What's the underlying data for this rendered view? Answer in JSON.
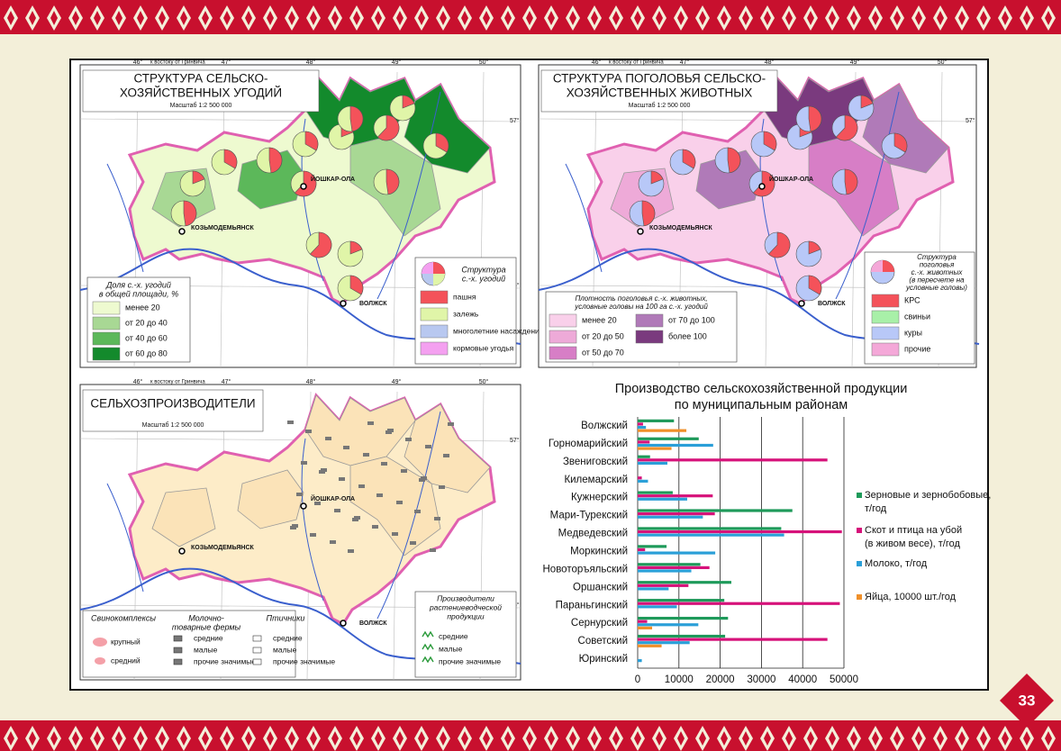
{
  "page_number": "33",
  "graticule": {
    "lon": [
      "46°",
      "47°",
      "48°",
      "49°",
      "50°"
    ],
    "note": "к востоку от Гринвича",
    "lat": [
      "57°",
      "56°"
    ]
  },
  "cities": [
    "ЙОШКАР-ОЛА",
    "КОЗЬМОДЕМЬЯНСК",
    "ВОЛЖСК"
  ],
  "maps": [
    {
      "title": [
        "СТРУКТУРА СЕЛЬСКО-",
        "ХОЗЯЙСТВЕННЫХ УГОДИЙ"
      ],
      "scale": "Масштаб 1:2 500 000",
      "legend1": {
        "title": [
          "Доля с.-х. угодий",
          "в общей площади, %"
        ],
        "items": [
          "менее 20",
          "от 20 до 40",
          "от 40 до 60",
          "от 60 до 80"
        ]
      },
      "legend2": {
        "title": [
          "Структура",
          "с.-х. угодий"
        ],
        "items": [
          "пашня",
          "залежь",
          "многолетние насаждения",
          "кормовые угодья"
        ]
      }
    },
    {
      "title": [
        "СТРУКТУРА ПОГОЛОВЬЯ СЕЛЬСКО-",
        "ХОЗЯЙСТВЕННЫХ ЖИВОТНЫХ"
      ],
      "scale": "Масштаб 1:2 500 000",
      "legend1": {
        "title": [
          "Плотность поголовья с.-х. животных,",
          "условные головы на 100 га с.-х. угодий"
        ],
        "items": [
          "менее 20",
          "от 20 до 50",
          "от 50 до 70",
          "от 70 до 100",
          "более 100"
        ]
      },
      "legend2": {
        "title": [
          "Структура",
          "поголовья",
          "с.-х. животных",
          "(в пересчете на",
          "условные головы)"
        ],
        "items": [
          "КРС",
          "свиньи",
          "куры",
          "прочие"
        ]
      }
    },
    {
      "title": [
        "СЕЛЬХОЗПРОИЗВОДИТЕЛИ"
      ],
      "scale": "Масштаб 1:2 500 000",
      "groups": [
        {
          "title": [
            "Свинокомплексы"
          ],
          "items": [
            "крупный",
            "средний"
          ]
        },
        {
          "title": [
            "Молочно-",
            "товарные фермы"
          ],
          "items": [
            "средние",
            "малые",
            "прочие значимые"
          ]
        },
        {
          "title": [
            "Птичники"
          ],
          "items": [
            "средние",
            "малые",
            "прочие значимые"
          ]
        }
      ],
      "legend2": {
        "title": [
          "Производители",
          "растениеводческой",
          "продукции"
        ],
        "items": [
          "средние",
          "малые",
          "прочие значимые"
        ]
      }
    }
  ],
  "chart_data": {
    "type": "bar",
    "orientation": "horizontal",
    "title": [
      "Производство сельскохозяйственной продукции",
      "по муниципальным районам"
    ],
    "categories": [
      "Волжский",
      "Горномарийский",
      "Звениговский",
      "Килемарский",
      "Кужнерский",
      "Мари-Турекский",
      "Медведевский",
      "Моркинский",
      "Новоторъяльский",
      "Оршанский",
      "Параньгинский",
      "Сернурский",
      "Советский",
      "Юринский"
    ],
    "series": [
      {
        "name": "Зерновые и зернобобовые, т/год",
        "color": "#1e9a5a",
        "values": [
          8800,
          14800,
          3000,
          0,
          8500,
          37500,
          34800,
          7000,
          15200,
          22700,
          21000,
          21900,
          21200,
          0
        ]
      },
      {
        "name": "Скот и птица на убой (в живом весе), т/год",
        "color": "#d6127a",
        "values": [
          1300,
          2900,
          46000,
          1000,
          18200,
          18700,
          49500,
          1800,
          17400,
          12300,
          49000,
          2300,
          46000,
          0
        ]
      },
      {
        "name": "Молоко, т/год",
        "color": "#2a9fd8",
        "values": [
          2000,
          18300,
          7200,
          2500,
          12000,
          15800,
          35500,
          18800,
          13000,
          7500,
          9500,
          14700,
          12600,
          1000
        ]
      },
      {
        "name": "Яйца, 10000 шт./год",
        "color": "#f0902a",
        "values": [
          11800,
          8200,
          0,
          0,
          0,
          0,
          0,
          0,
          0,
          0,
          0,
          3500,
          5800,
          0
        ]
      }
    ],
    "xlim": [
      0,
      50000
    ],
    "xticks": [
      0,
      10000,
      20000,
      30000,
      40000,
      50000
    ],
    "grid": true
  }
}
